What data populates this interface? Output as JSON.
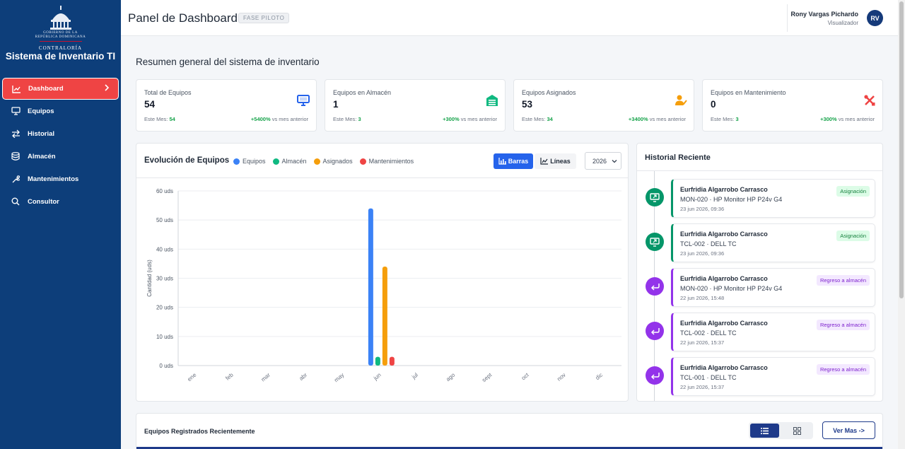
{
  "sidebar": {
    "logo_line1": "GOBIERNO DE LA",
    "logo_line2": "REPÚBLICA DOMINICANA",
    "logo_org": "CONTRALORÍA",
    "app_title": "Sistema de Inventario TI",
    "items": [
      {
        "label": "Dashboard",
        "icon": "chart-line-icon",
        "active": true
      },
      {
        "label": "Equipos",
        "icon": "monitor-icon"
      },
      {
        "label": "Historial",
        "icon": "arrows-exchange-icon"
      },
      {
        "label": "Almacén",
        "icon": "database-icon"
      },
      {
        "label": "Mantenimientos",
        "icon": "wrench-icon"
      },
      {
        "label": "Consultor",
        "icon": "search-icon"
      }
    ]
  },
  "header": {
    "title": "Panel de Dashboard",
    "phase": "FASE PILOTO",
    "user_name": "Rony Vargas Pichardo",
    "user_role": "Visualizador",
    "user_initials": "RV"
  },
  "summary_title": "Resumen general del sistema de inventario",
  "stats": [
    {
      "label": "Total de Equipos",
      "value": "54",
      "month_label": "Este Mes:",
      "month_value": "54",
      "delta": "+5400%",
      "delta_suffix": "vs mes anterior",
      "icon": "monitor-icon",
      "color": "#2563eb"
    },
    {
      "label": "Equipos en Almacén",
      "value": "1",
      "month_label": "Este Mes:",
      "month_value": "3",
      "delta": "+300%",
      "delta_suffix": "vs mes anterior",
      "icon": "warehouse-icon",
      "color": "#10b981"
    },
    {
      "label": "Equipos Asignados",
      "value": "53",
      "month_label": "Este Mes:",
      "month_value": "34",
      "delta": "+3400%",
      "delta_suffix": "vs mes anterior",
      "icon": "user-check-icon",
      "color": "#f59e0b"
    },
    {
      "label": "Equipos en Mantenimiento",
      "value": "0",
      "month_label": "Este Mes:",
      "month_value": "3",
      "delta": "+300%",
      "delta_suffix": "vs mes anterior",
      "icon": "tools-icon",
      "color": "#ef4444"
    }
  ],
  "chart_panel": {
    "title": "Evolución de Equipos",
    "btn_bars": "Barras",
    "btn_lines": "Líneas",
    "year": "2026"
  },
  "chart_data": {
    "type": "bar",
    "categories": [
      "ene",
      "feb",
      "mar",
      "abr",
      "may",
      "jun",
      "jul",
      "ago",
      "sept",
      "oct",
      "nov",
      "dic"
    ],
    "ylabel": "Cantidad (uds)",
    "ylim": [
      0,
      60
    ],
    "yticks": [
      0,
      10,
      20,
      30,
      40,
      50,
      60
    ],
    "ytick_suffix": " uds",
    "legend_position": "top",
    "series": [
      {
        "name": "Equipos",
        "color": "#3b82f6",
        "values": [
          0,
          0,
          0,
          0,
          0,
          54,
          0,
          0,
          0,
          0,
          0,
          0
        ]
      },
      {
        "name": "Almacén",
        "color": "#10b981",
        "values": [
          0,
          0,
          0,
          0,
          0,
          3,
          0,
          0,
          0,
          0,
          0,
          0
        ]
      },
      {
        "name": "Asignados",
        "color": "#f59e0b",
        "values": [
          0,
          0,
          0,
          0,
          0,
          34,
          0,
          0,
          0,
          0,
          0,
          0
        ]
      },
      {
        "name": "Mantenimientos",
        "color": "#ef4444",
        "values": [
          0,
          0,
          0,
          0,
          0,
          3,
          0,
          0,
          0,
          0,
          0,
          0
        ]
      }
    ]
  },
  "history": {
    "title": "Historial Reciente",
    "items": [
      {
        "who": "Eurfridia Algarrobo Carrasco",
        "what": "MON-020 · HP Monitor HP P24v G4",
        "when": "23 jun 2026, 09:36",
        "tag": "Asignación",
        "kind": "assign"
      },
      {
        "who": "Eurfridia Algarrobo Carrasco",
        "what": "TCL-002 · DELL TC",
        "when": "23 jun 2026, 09:36",
        "tag": "Asignación",
        "kind": "assign"
      },
      {
        "who": "Eurfridia Algarrobo Carrasco",
        "what": "MON-020 · HP Monitor HP P24v G4",
        "when": "22 jun 2026, 15:48",
        "tag": "Regreso a almacén",
        "kind": "return"
      },
      {
        "who": "Eurfridia Algarrobo Carrasco",
        "what": "TCL-002 · DELL TC",
        "when": "22 jun 2026, 15:37",
        "tag": "Regreso a almacén",
        "kind": "return"
      },
      {
        "who": "Eurfridia Algarrobo Carrasco",
        "what": "TCL-001 · DELL TC",
        "when": "22 jun 2026, 15:37",
        "tag": "Regreso a almacén",
        "kind": "return"
      }
    ]
  },
  "recent": {
    "title": "Equipos Registrados Recientemente",
    "ver_mas": "Ver Mas ->"
  },
  "colors": {
    "sidebar_bg": "#0d3e7a",
    "active_nav": "#ef4444",
    "assign": "#059669",
    "return": "#9333ea",
    "primary": "#2563eb"
  }
}
